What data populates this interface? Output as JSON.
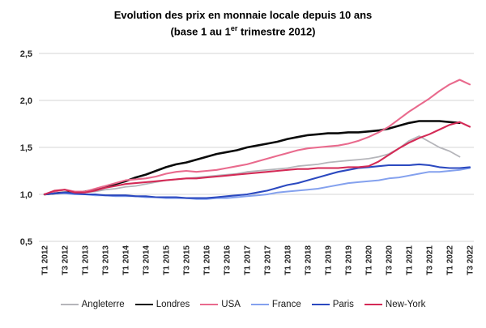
{
  "title": {
    "line1": "Evolution des prix en monnaie locale depuis 10 ans",
    "line2_prefix": "(base 1 au 1",
    "line2_sup": "er",
    "line2_suffix": " trimestre 2012)"
  },
  "chart_data": {
    "type": "line",
    "title": "Evolution des prix en monnaie locale depuis 10 ans (base 1 au 1er trimestre 2012)",
    "xlabel": "",
    "ylabel": "",
    "ylim": [
      0.5,
      2.5
    ],
    "grid": true,
    "legend_position": "bottom",
    "y_tick_labels": [
      "0,5",
      "1,0",
      "1,5",
      "2,0",
      "2,5"
    ],
    "y_tick_values": [
      0.5,
      1.0,
      1.5,
      2.0,
      2.5
    ],
    "x_tick_labels": [
      "T1 2012",
      "T3 2012",
      "T1 2013",
      "T3 2013",
      "T1 2014",
      "T3 2014",
      "T1 2015",
      "T3 2015",
      "T1 2016",
      "T3 2016",
      "T1 2017",
      "T3 2017",
      "T1 2018",
      "T3 2018",
      "T1 2019",
      "T3 2019",
      "T1 2020",
      "T3 2020",
      "T1 2021",
      "T3 2021",
      "T1 2022",
      "T3 2022"
    ],
    "quarters_total": 43,
    "series": [
      {
        "name": "Angleterre",
        "color": "#b5b5ba",
        "stroke_width": 1.8,
        "values": [
          1.0,
          1.01,
          1.01,
          1.01,
          1.02,
          1.03,
          1.05,
          1.06,
          1.08,
          1.09,
          1.11,
          1.13,
          1.15,
          1.16,
          1.17,
          1.18,
          1.19,
          1.2,
          1.21,
          1.22,
          1.24,
          1.25,
          1.26,
          1.27,
          1.28,
          1.3,
          1.31,
          1.32,
          1.34,
          1.35,
          1.36,
          1.37,
          1.38,
          1.4,
          1.43,
          1.49,
          1.57,
          1.62,
          1.56,
          1.5,
          1.46,
          1.4
        ]
      },
      {
        "name": "Londres",
        "color": "#0a0a0a",
        "stroke_width": 2.6,
        "values": [
          1.0,
          1.01,
          1.02,
          1.02,
          1.03,
          1.05,
          1.08,
          1.11,
          1.14,
          1.18,
          1.21,
          1.25,
          1.29,
          1.32,
          1.34,
          1.37,
          1.4,
          1.43,
          1.45,
          1.47,
          1.5,
          1.52,
          1.54,
          1.56,
          1.59,
          1.61,
          1.63,
          1.64,
          1.65,
          1.65,
          1.66,
          1.66,
          1.67,
          1.68,
          1.7,
          1.73,
          1.76,
          1.78,
          1.78,
          1.78,
          1.77,
          1.76
        ]
      },
      {
        "name": "USA",
        "color": "#e96a8d",
        "stroke_width": 2.1,
        "values": [
          1.0,
          1.03,
          1.05,
          1.03,
          1.03,
          1.06,
          1.09,
          1.12,
          1.15,
          1.16,
          1.17,
          1.19,
          1.22,
          1.24,
          1.25,
          1.24,
          1.25,
          1.26,
          1.28,
          1.3,
          1.32,
          1.35,
          1.38,
          1.41,
          1.44,
          1.47,
          1.49,
          1.5,
          1.51,
          1.52,
          1.54,
          1.57,
          1.61,
          1.66,
          1.72,
          1.8,
          1.88,
          1.95,
          2.02,
          2.1,
          2.17,
          2.22,
          2.17
        ]
      },
      {
        "name": "France",
        "color": "#84a1ee",
        "stroke_width": 2.0,
        "values": [
          1.0,
          1.01,
          1.01,
          1.0,
          1.0,
          0.99,
          0.99,
          0.98,
          0.98,
          0.98,
          0.97,
          0.97,
          0.96,
          0.96,
          0.96,
          0.95,
          0.95,
          0.96,
          0.96,
          0.97,
          0.98,
          0.99,
          1.0,
          1.02,
          1.03,
          1.04,
          1.05,
          1.06,
          1.08,
          1.1,
          1.12,
          1.13,
          1.14,
          1.15,
          1.17,
          1.18,
          1.2,
          1.22,
          1.24,
          1.24,
          1.25,
          1.26,
          1.28
        ]
      },
      {
        "name": "Paris",
        "color": "#2b49c0",
        "stroke_width": 2.1,
        "values": [
          1.0,
          1.01,
          1.02,
          1.01,
          1.0,
          1.0,
          0.99,
          0.99,
          0.99,
          0.98,
          0.98,
          0.97,
          0.97,
          0.97,
          0.96,
          0.96,
          0.96,
          0.97,
          0.98,
          0.99,
          1.0,
          1.02,
          1.04,
          1.07,
          1.1,
          1.12,
          1.15,
          1.18,
          1.21,
          1.24,
          1.26,
          1.28,
          1.29,
          1.3,
          1.31,
          1.31,
          1.31,
          1.32,
          1.31,
          1.29,
          1.28,
          1.28,
          1.29
        ]
      },
      {
        "name": "New-York",
        "color": "#d42a56",
        "stroke_width": 2.1,
        "values": [
          1.0,
          1.04,
          1.05,
          1.02,
          1.02,
          1.04,
          1.07,
          1.09,
          1.11,
          1.12,
          1.13,
          1.14,
          1.15,
          1.16,
          1.17,
          1.17,
          1.18,
          1.19,
          1.2,
          1.21,
          1.22,
          1.23,
          1.24,
          1.25,
          1.26,
          1.27,
          1.27,
          1.28,
          1.28,
          1.28,
          1.29,
          1.29,
          1.3,
          1.35,
          1.42,
          1.49,
          1.55,
          1.6,
          1.64,
          1.69,
          1.74,
          1.77,
          1.72
        ]
      }
    ],
    "colors": {
      "gridline": "#d4d4d4",
      "tick_text": "#262626"
    }
  }
}
